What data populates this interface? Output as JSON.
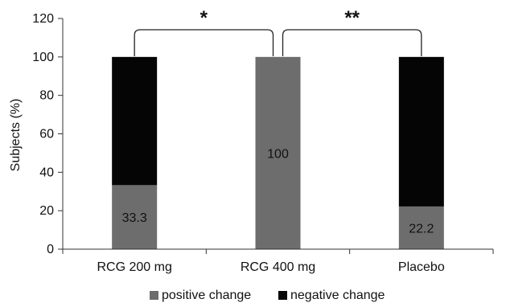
{
  "chart_data": {
    "type": "bar",
    "stacked": true,
    "categories": [
      "RCG 200 mg",
      "RCG 400 mg",
      "Placebo"
    ],
    "series": [
      {
        "name": "positive change",
        "values": [
          33.3,
          100,
          22.2
        ],
        "color": "#6d6d6d"
      },
      {
        "name": "negative change",
        "values": [
          66.7,
          0,
          77.8
        ],
        "color": "#050505"
      }
    ],
    "data_labels": [
      "33.3",
      "100",
      "22.2"
    ],
    "title": "",
    "xlabel": "",
    "ylabel": "Subjects (%)",
    "ylim": [
      0,
      120
    ],
    "yticks": [
      0,
      20,
      40,
      60,
      80,
      100,
      120
    ],
    "grid": false,
    "legend_position": "bottom",
    "significance": [
      {
        "from": 0,
        "to": 1,
        "label": "*"
      },
      {
        "from": 1,
        "to": 2,
        "label": "**"
      }
    ]
  }
}
